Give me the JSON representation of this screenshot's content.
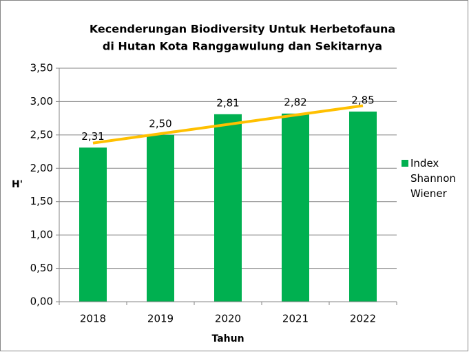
{
  "chart_data": {
    "type": "bar",
    "title": [
      "Kecenderungan Biodiversity Untuk Herbetofauna",
      "di Hutan Kota Ranggawulung dan Sekitarnya"
    ],
    "x_label": "Tahun",
    "y_label": "H'",
    "categories": [
      "2018",
      "2019",
      "2020",
      "2021",
      "2022"
    ],
    "series": [
      {
        "name": "Index Shannon Wiener",
        "color": "#00b050",
        "values": [
          2.31,
          2.5,
          2.81,
          2.82,
          2.85
        ],
        "value_labels": [
          "2,31",
          "2,50",
          "2,81",
          "2,82",
          "2,85"
        ]
      }
    ],
    "trendline": {
      "type": "linear",
      "color": "#ffc000"
    },
    "ylim": [
      0,
      3.5
    ],
    "yticks": [
      {
        "value": 0,
        "label": "0,00"
      },
      {
        "value": 0.5,
        "label": "0,50"
      },
      {
        "value": 1,
        "label": "1,00"
      },
      {
        "value": 1.5,
        "label": "1,50"
      },
      {
        "value": 2,
        "label": "2,00"
      },
      {
        "value": 2.5,
        "label": "2,50"
      },
      {
        "value": 3,
        "label": "3,00"
      },
      {
        "value": 3.5,
        "label": "3,50"
      }
    ],
    "grid": true,
    "legend": "right"
  }
}
